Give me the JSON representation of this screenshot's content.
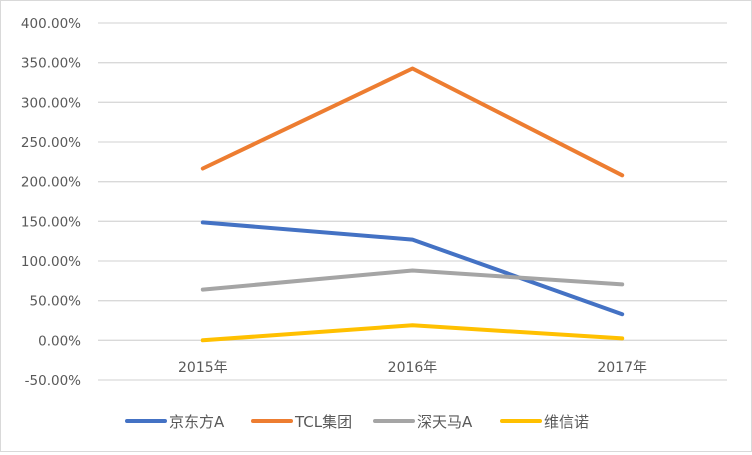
{
  "chart_data": {
    "type": "line",
    "title": "",
    "xlabel": "",
    "ylabel": "",
    "categories": [
      "2015年",
      "2016年",
      "2017年"
    ],
    "ylim": [
      -50,
      400
    ],
    "y_ticks": [
      "400.00%",
      "350.00%",
      "300.00%",
      "250.00%",
      "200.00%",
      "150.00%",
      "100.00%",
      "50.00%",
      "0.00%",
      "-50.00%"
    ],
    "y_tick_values": [
      400,
      350,
      300,
      250,
      200,
      150,
      100,
      50,
      0,
      -50
    ],
    "grid": true,
    "legend_position": "bottom",
    "series": [
      {
        "name": "京东方A",
        "color": "#4472C4",
        "values": [
          148.6,
          127.0,
          33.0
        ]
      },
      {
        "name": "TCL集团",
        "color": "#ED7D31",
        "values": [
          216.6,
          342.6,
          208.0
        ]
      },
      {
        "name": "深天马A",
        "color": "#A5A5A5",
        "values": [
          64.0,
          88.0,
          70.5
        ]
      },
      {
        "name": "维信诺",
        "color": "#FFC000",
        "values": [
          0.0,
          19.0,
          2.5
        ]
      }
    ]
  }
}
